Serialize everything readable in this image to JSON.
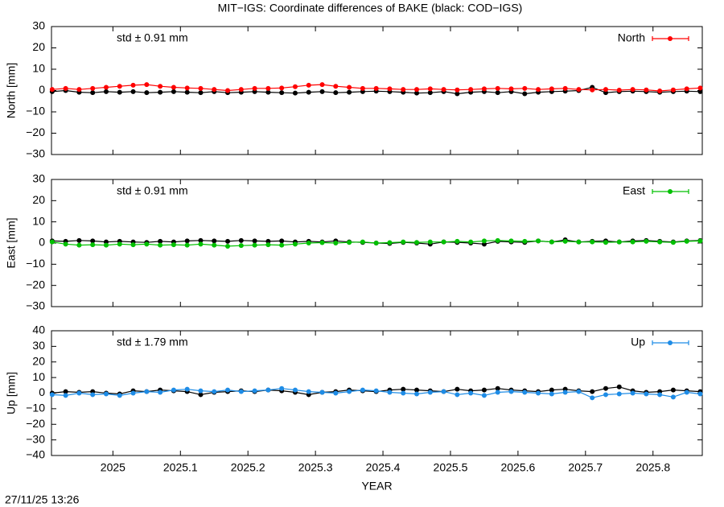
{
  "title": "MIT−IGS: Coordinate differences of BAKE (black: COD−IGS)",
  "timestamp": "27/11/25 13:26",
  "chart_data": [
    {
      "type": "scatter",
      "ylabel": "North [mm]",
      "annotation": "std ± 0.91 mm",
      "legend": "top-right",
      "xlim": [
        2024.909,
        2025.873
      ],
      "ylim": [
        -30,
        30
      ],
      "yticks": [
        {
          "value": -30,
          "label": "−30"
        },
        {
          "value": -20,
          "label": "−20"
        },
        {
          "value": -10,
          "label": "−10"
        },
        0,
        10,
        20,
        30
      ],
      "x": [
        2024.91,
        2024.93,
        2024.95,
        2024.97,
        2024.99,
        2025.01,
        2025.03,
        2025.05,
        2025.07,
        2025.09,
        2025.11,
        2025.13,
        2025.15,
        2025.17,
        2025.19,
        2025.21,
        2025.23,
        2025.25,
        2025.27,
        2025.29,
        2025.31,
        2025.33,
        2025.35,
        2025.37,
        2025.39,
        2025.41,
        2025.43,
        2025.45,
        2025.47,
        2025.49,
        2025.51,
        2025.53,
        2025.55,
        2025.57,
        2025.59,
        2025.61,
        2025.63,
        2025.65,
        2025.67,
        2025.69,
        2025.71,
        2025.73,
        2025.75,
        2025.77,
        2025.79,
        2025.81,
        2025.83,
        2025.85,
        2025.87
      ],
      "series": [
        {
          "color": "#000000",
          "values": [
            -0.5,
            0,
            -0.8,
            -1,
            -0.5,
            -0.8,
            -0.5,
            -1,
            -0.8,
            -0.5,
            -0.8,
            -1,
            -0.5,
            -1,
            -0.8,
            -0.5,
            -0.8,
            -1,
            -1.2,
            -0.8,
            -0.5,
            -1,
            -0.8,
            -0.5,
            -0.3,
            -0.5,
            -0.8,
            -1.2,
            -1,
            -0.5,
            -1.5,
            -0.8,
            -0.5,
            -1,
            -0.5,
            -1.5,
            -0.8,
            -0.5,
            -0.3,
            0,
            1.5,
            -1,
            -0.5,
            -0.3,
            -0.5,
            -0.8,
            -0.5,
            -0.3,
            -0.5
          ]
        },
        {
          "name": "North",
          "color": "#ff0000",
          "values": [
            0.5,
            1,
            0.5,
            1,
            1.5,
            2,
            2.5,
            2.8,
            2,
            1.5,
            1.2,
            1,
            0.5,
            0,
            0.5,
            1,
            1,
            1.2,
            1.8,
            2.5,
            2.8,
            2,
            1.5,
            1,
            1,
            0.8,
            0.5,
            0.5,
            0.8,
            0.5,
            0.3,
            0.5,
            0.8,
            1,
            0.8,
            1,
            0.5,
            0.8,
            1,
            0.5,
            0.3,
            0.5,
            0.2,
            0.5,
            0.3,
            -0.2,
            0.3,
            0.8,
            1.2
          ]
        }
      ]
    },
    {
      "type": "scatter",
      "ylabel": "East [mm]",
      "annotation": "std ± 0.91 mm",
      "legend": "top-right",
      "xlim": [
        2024.909,
        2025.873
      ],
      "ylim": [
        -30,
        30
      ],
      "yticks": [
        {
          "value": -30,
          "label": "−30"
        },
        {
          "value": -20,
          "label": "−20"
        },
        {
          "value": -10,
          "label": "−10"
        },
        0,
        10,
        20,
        30
      ],
      "x": [
        2024.91,
        2024.93,
        2024.95,
        2024.97,
        2024.99,
        2025.01,
        2025.03,
        2025.05,
        2025.07,
        2025.09,
        2025.11,
        2025.13,
        2025.15,
        2025.17,
        2025.19,
        2025.21,
        2025.23,
        2025.25,
        2025.27,
        2025.29,
        2025.31,
        2025.33,
        2025.35,
        2025.37,
        2025.39,
        2025.41,
        2025.43,
        2025.45,
        2025.47,
        2025.49,
        2025.51,
        2025.53,
        2025.55,
        2025.57,
        2025.59,
        2025.61,
        2025.63,
        2025.65,
        2025.67,
        2025.69,
        2025.71,
        2025.73,
        2025.75,
        2025.77,
        2025.79,
        2025.81,
        2025.83,
        2025.85,
        2025.87
      ],
      "series": [
        {
          "color": "#000000",
          "values": [
            1,
            0.8,
            1.2,
            1,
            0.5,
            0.8,
            0.5,
            0.3,
            0.8,
            0.5,
            1,
            1.2,
            1,
            0.8,
            1.2,
            1,
            0.8,
            1,
            0.5,
            0.8,
            0.5,
            1,
            0.5,
            0.3,
            0,
            -0.2,
            0.3,
            0,
            -0.5,
            0.5,
            0.3,
            0,
            -0.5,
            0.8,
            0.5,
            0.3,
            1,
            0.5,
            1.5,
            0.5,
            0.8,
            1,
            0.5,
            1,
            1.2,
            0.8,
            0.5,
            1,
            1.2
          ]
        },
        {
          "name": "East",
          "color": "#00c000",
          "values": [
            0.5,
            -0.5,
            -1,
            -0.8,
            -1,
            -0.5,
            -0.8,
            -0.5,
            -1,
            -0.8,
            -1,
            -0.5,
            -1,
            -1.5,
            -1.2,
            -1,
            -0.8,
            -1,
            -0.5,
            0,
            0.2,
            0,
            0.3,
            0.5,
            0,
            0.2,
            0.5,
            0.3,
            0.5,
            0.5,
            0.8,
            0.5,
            1,
            1.2,
            1,
            0.8,
            1,
            0.5,
            0.8,
            0.5,
            0.5,
            0.3,
            0.5,
            0.5,
            0.8,
            0.5,
            0.3,
            0.8,
            1
          ]
        }
      ]
    },
    {
      "type": "scatter",
      "ylabel": "Up [mm]",
      "xlabel": "YEAR",
      "annotation": "std ± 1.79 mm",
      "legend": "top-right",
      "xlim": [
        2024.909,
        2025.873
      ],
      "ylim": [
        -40,
        40
      ],
      "xticks": [
        2025,
        2025.1,
        2025.2,
        2025.3,
        2025.4,
        2025.5,
        2025.6,
        2025.7,
        2025.8
      ],
      "yticks": [
        {
          "value": -40,
          "label": "−40"
        },
        {
          "value": -30,
          "label": "−30"
        },
        {
          "value": -20,
          "label": "−20"
        },
        {
          "value": -10,
          "label": "−10"
        },
        0,
        10,
        20,
        30,
        40
      ],
      "x": [
        2024.91,
        2024.93,
        2024.95,
        2024.97,
        2024.99,
        2025.01,
        2025.03,
        2025.05,
        2025.07,
        2025.09,
        2025.11,
        2025.13,
        2025.15,
        2025.17,
        2025.19,
        2025.21,
        2025.23,
        2025.25,
        2025.27,
        2025.29,
        2025.31,
        2025.33,
        2025.35,
        2025.37,
        2025.39,
        2025.41,
        2025.43,
        2025.45,
        2025.47,
        2025.49,
        2025.51,
        2025.53,
        2025.55,
        2025.57,
        2025.59,
        2025.61,
        2025.63,
        2025.65,
        2025.67,
        2025.69,
        2025.71,
        2025.73,
        2025.75,
        2025.77,
        2025.79,
        2025.81,
        2025.83,
        2025.85,
        2025.87
      ],
      "series": [
        {
          "color": "#000000",
          "values": [
            0,
            1,
            0.5,
            1,
            0,
            -0.5,
            1.5,
            1,
            2,
            1.5,
            1,
            -1,
            0.5,
            1,
            1.5,
            1,
            2,
            1.5,
            0.5,
            -1,
            0.5,
            1,
            2,
            1.5,
            1,
            2,
            2.5,
            2,
            1.5,
            1,
            2.5,
            1.5,
            2,
            3,
            2,
            1.5,
            1,
            2,
            2.5,
            1.5,
            1,
            3,
            4,
            1.5,
            0.5,
            1,
            2,
            1.5,
            1
          ]
        },
        {
          "name": "Up",
          "color": "#1e8ce6",
          "values": [
            -1,
            -1.5,
            0,
            -1,
            -0.5,
            -1.5,
            0,
            1,
            0.5,
            2,
            2.5,
            1.5,
            1,
            2,
            1,
            1.5,
            2,
            3,
            2,
            1,
            0.5,
            0,
            1,
            2,
            1.5,
            0.5,
            0,
            -0.5,
            0.5,
            1,
            -1,
            0,
            -1.5,
            0.5,
            1,
            0.5,
            0,
            -0.5,
            0.5,
            1,
            -3,
            -1,
            -0.5,
            0,
            -0.5,
            -1,
            -2.5,
            0.5,
            -0.5
          ]
        }
      ]
    }
  ]
}
